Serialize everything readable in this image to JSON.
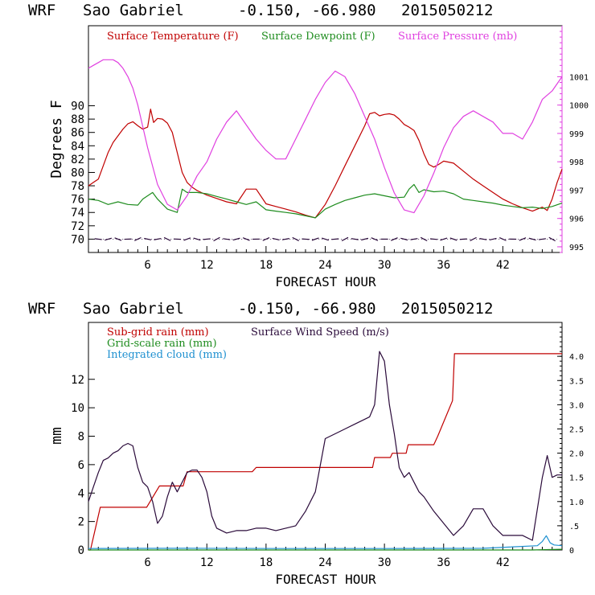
{
  "chart_data": [
    {
      "type": "line",
      "header": {
        "model": "WRF",
        "station": "Sao Gabriel",
        "coords": "-0.150, -66.980",
        "init": "2015050212"
      },
      "xlabel": "FORECAST HOUR",
      "ylabel": "Degrees F",
      "xlim": [
        0,
        48
      ],
      "ylim": [
        68,
        102
      ],
      "xticks": [
        "6",
        "12",
        "18",
        "24",
        "30",
        "36",
        "42"
      ],
      "xtick_values": [
        6,
        12,
        18,
        24,
        30,
        36,
        42
      ],
      "yticks": [
        "70",
        "72",
        "74",
        "76",
        "78",
        "80",
        "82",
        "84",
        "86",
        "88",
        "90"
      ],
      "ytick_values": [
        70,
        72,
        74,
        76,
        78,
        80,
        82,
        84,
        86,
        88,
        90
      ],
      "y2lim": [
        994.8,
        1002.8
      ],
      "y2ticks": [
        "995",
        "996",
        "997",
        "998",
        "999",
        "1000",
        "1001"
      ],
      "y2tick_values": [
        995,
        996,
        997,
        998,
        999,
        1000,
        1001
      ],
      "colors": {
        "temperature": "#c00000",
        "dewpoint": "#1e8c1e",
        "pressure": "#e040e0",
        "wind": "#2a0a3a"
      },
      "series": [
        {
          "name": "Surface Temperature (F)",
          "axis": "left",
          "x": [
            0,
            0.5,
            1,
            1.5,
            2,
            2.5,
            3,
            3.5,
            4,
            4.5,
            5,
            5.5,
            6,
            6.3,
            6.6,
            6.8,
            7,
            7.5,
            8,
            8.5,
            9,
            9.5,
            10,
            10.5,
            11,
            12,
            13,
            14,
            15,
            16,
            17,
            18,
            19,
            20,
            21,
            22,
            23,
            24,
            25,
            26,
            27,
            28,
            28.5,
            29,
            29.5,
            30,
            30.5,
            31,
            31.5,
            32,
            32.5,
            33,
            33.5,
            34,
            34.5,
            35,
            35.5,
            36,
            37,
            38,
            39,
            40,
            41,
            42,
            43,
            44,
            45,
            45.5,
            46,
            46.5,
            47,
            47.5,
            48
          ],
          "values": [
            78,
            78.5,
            79,
            81,
            83,
            84.5,
            85.5,
            86.5,
            87.3,
            87.6,
            87.0,
            86.5,
            86.8,
            89.5,
            87.5,
            87.8,
            88.1,
            88.0,
            87.4,
            86.0,
            83.0,
            80.0,
            78.5,
            77.8,
            77.3,
            76.6,
            76.1,
            75.6,
            75.3,
            77.5,
            77.5,
            75.3,
            74.9,
            74.5,
            74.1,
            73.6,
            73.2,
            75.2,
            78.0,
            81.0,
            84.0,
            87.0,
            88.8,
            89.0,
            88.5,
            88.7,
            88.8,
            88.6,
            88.0,
            87.2,
            86.8,
            86.3,
            84.8,
            82.8,
            81.2,
            80.8,
            81.2,
            81.7,
            81.4,
            80.2,
            79.0,
            78.0,
            77.0,
            76.0,
            75.3,
            74.7,
            74.2,
            74.5,
            74.8,
            74.3,
            76.0,
            78.5,
            80.5
          ]
        },
        {
          "name": "Surface Dewpoint (F)",
          "axis": "left",
          "x": [
            0,
            1,
            2,
            3,
            4,
            5,
            5.5,
            6,
            6.5,
            7,
            8,
            9,
            9.5,
            10,
            11,
            12,
            13,
            14,
            15,
            16,
            17,
            18,
            19,
            20,
            21,
            22,
            23,
            24,
            25,
            26,
            27,
            28,
            29,
            30,
            31,
            32,
            32.5,
            33,
            33.5,
            34,
            35,
            36,
            37,
            38,
            39,
            40,
            41,
            42,
            43,
            44,
            45,
            46,
            47,
            48
          ],
          "values": [
            76,
            75.8,
            75.2,
            75.6,
            75.2,
            75.1,
            76.0,
            76.5,
            77.0,
            76.0,
            74.5,
            74.0,
            77.5,
            77.0,
            77.0,
            76.8,
            76.4,
            76.0,
            75.6,
            75.2,
            75.6,
            74.4,
            74.2,
            74.0,
            73.8,
            73.5,
            73.2,
            74.5,
            75.2,
            75.8,
            76.2,
            76.6,
            76.8,
            76.5,
            76.2,
            76.3,
            77.5,
            78.2,
            77.0,
            77.4,
            77.1,
            77.2,
            76.8,
            76.0,
            75.8,
            75.6,
            75.4,
            75.1,
            74.9,
            74.7,
            74.8,
            74.6,
            74.9,
            75.4
          ]
        },
        {
          "name": "Surface Pressure (mb)",
          "axis": "right",
          "x": [
            0,
            0.5,
            1,
            1.5,
            2,
            2.5,
            3,
            3.5,
            4,
            4.5,
            5,
            6,
            7,
            8,
            9,
            10,
            11,
            12,
            13,
            14,
            15,
            16,
            17,
            18,
            19,
            20,
            21,
            22,
            23,
            24,
            25,
            26,
            27,
            28,
            29,
            30,
            31,
            32,
            33,
            34,
            35,
            36,
            37,
            38,
            39,
            40,
            41,
            42,
            43,
            44,
            45,
            46,
            47,
            48
          ],
          "values": [
            1001.3,
            1001.4,
            1001.5,
            1001.6,
            1001.6,
            1001.6,
            1001.5,
            1001.3,
            1001.0,
            1000.6,
            1000.0,
            998.5,
            997.2,
            996.5,
            996.3,
            996.8,
            997.5,
            998.0,
            998.8,
            999.4,
            999.8,
            999.3,
            998.8,
            998.4,
            998.1,
            998.1,
            998.8,
            999.5,
            1000.2,
            1000.8,
            1001.2,
            1001.0,
            1000.4,
            999.6,
            998.8,
            997.8,
            996.9,
            996.3,
            996.2,
            996.8,
            997.6,
            998.5,
            999.2,
            999.6,
            999.8,
            999.6,
            999.4,
            999.0,
            999.0,
            998.8,
            999.4,
            1000.2,
            1000.5,
            1001.0
          ]
        }
      ],
      "legend": [
        "Surface Temperature (F)",
        "Surface Dewpoint (F)",
        "Surface Pressure (mb)"
      ],
      "legend_position": "top",
      "wind_barbs": {
        "y_level": 70,
        "description": "hourly wind barbs along 70 F line"
      }
    },
    {
      "type": "line",
      "header": {
        "model": "WRF",
        "station": "Sao Gabriel",
        "coords": "-0.150, -66.980",
        "init": "2015050212"
      },
      "xlabel": "FORECAST HOUR",
      "ylabel": "mm",
      "xlim": [
        0,
        48
      ],
      "ylim": [
        0,
        16
      ],
      "xticks": [
        "6",
        "12",
        "18",
        "24",
        "30",
        "36",
        "42"
      ],
      "xtick_values": [
        6,
        12,
        18,
        24,
        30,
        36,
        42
      ],
      "yticks": [
        "0",
        "2",
        "4",
        "6",
        "8",
        "10",
        "12"
      ],
      "ytick_values": [
        0,
        2,
        4,
        6,
        8,
        10,
        12
      ],
      "y2lim": [
        0,
        4.7
      ],
      "y2ticks": [
        "0",
        ".5",
        "1.0",
        "1.5",
        "2.0",
        "2.5",
        "3.0",
        "3.5",
        "4.0"
      ],
      "y2tick_values": [
        0,
        0.5,
        1.0,
        1.5,
        2.0,
        2.5,
        3.0,
        3.5,
        4.0
      ],
      "colors": {
        "subgrid": "#c00000",
        "gridscale": "#1e8c1e",
        "cloud": "#1e90d0",
        "wind": "#2a0a3a"
      },
      "series": [
        {
          "name": "Sub-grid rain (mm)",
          "axis": "left",
          "x": [
            0,
            0.2,
            1.2,
            1.3,
            5.8,
            5.9,
            7.2,
            8.8,
            9.6,
            10.0,
            16.6,
            17.0,
            28.8,
            29.0,
            30.6,
            30.8,
            32.2,
            32.4,
            35.0,
            35.4,
            36.9,
            37.1,
            48
          ],
          "values": [
            0,
            0,
            3.0,
            3.0,
            3.0,
            3.0,
            4.5,
            4.5,
            4.5,
            5.5,
            5.5,
            5.8,
            5.8,
            6.5,
            6.5,
            6.8,
            6.8,
            7.4,
            7.4,
            8.0,
            10.5,
            13.8,
            13.8
          ]
        },
        {
          "name": "Grid-scale rain (mm)",
          "axis": "left",
          "x": [
            0,
            45,
            48
          ],
          "values": [
            0,
            0,
            0.05
          ]
        },
        {
          "name": "Integrated cloud (mm)",
          "axis": "left",
          "x": [
            0,
            10,
            20,
            30,
            40,
            45.5,
            46.0,
            46.4,
            46.8,
            47.2,
            48
          ],
          "values": [
            0.1,
            0.12,
            0.1,
            0.1,
            0.12,
            0.3,
            0.6,
            1.0,
            0.5,
            0.35,
            0.3
          ]
        },
        {
          "name": "Surface Wind Speed (m/s)",
          "axis": "right",
          "x": [
            0,
            0.5,
            1,
            1.5,
            2,
            2.5,
            3,
            3.5,
            4,
            4.5,
            5,
            5.5,
            6,
            6.5,
            7,
            7.5,
            8,
            8.5,
            9,
            9.5,
            10,
            10.5,
            11,
            11.5,
            12,
            12.5,
            13,
            13.5,
            14,
            15,
            16,
            17,
            18,
            19,
            20,
            21,
            22,
            23,
            24,
            25,
            26,
            27,
            28,
            28.5,
            29,
            29.5,
            30,
            30.5,
            31,
            31.5,
            32,
            32.5,
            33,
            33.5,
            34,
            35,
            36,
            37,
            38,
            39,
            40,
            41,
            42,
            43,
            44,
            45,
            46,
            46.5,
            47,
            47.5,
            48
          ],
          "values": [
            1.0,
            1.3,
            1.6,
            1.85,
            1.9,
            2.0,
            2.05,
            2.15,
            2.2,
            2.15,
            1.7,
            1.4,
            1.3,
            1.0,
            0.55,
            0.7,
            1.1,
            1.4,
            1.2,
            1.4,
            1.6,
            1.65,
            1.65,
            1.5,
            1.2,
            0.7,
            0.45,
            0.4,
            0.35,
            0.4,
            0.4,
            0.45,
            0.45,
            0.4,
            0.45,
            0.5,
            0.8,
            1.2,
            2.3,
            2.4,
            2.5,
            2.6,
            2.7,
            2.75,
            3.0,
            4.1,
            3.9,
            3.0,
            2.4,
            1.7,
            1.5,
            1.6,
            1.4,
            1.2,
            1.1,
            0.8,
            0.55,
            0.3,
            0.5,
            0.85,
            0.85,
            0.5,
            0.3,
            0.3,
            0.3,
            0.2,
            1.5,
            1.95,
            1.5,
            1.55,
            1.55
          ]
        }
      ],
      "legend": [
        "Sub-grid rain (mm)",
        "Grid-scale rain (mm)",
        "Integrated cloud (mm)",
        "Surface Wind Speed (m/s)"
      ],
      "legend_position": "top-left"
    }
  ]
}
